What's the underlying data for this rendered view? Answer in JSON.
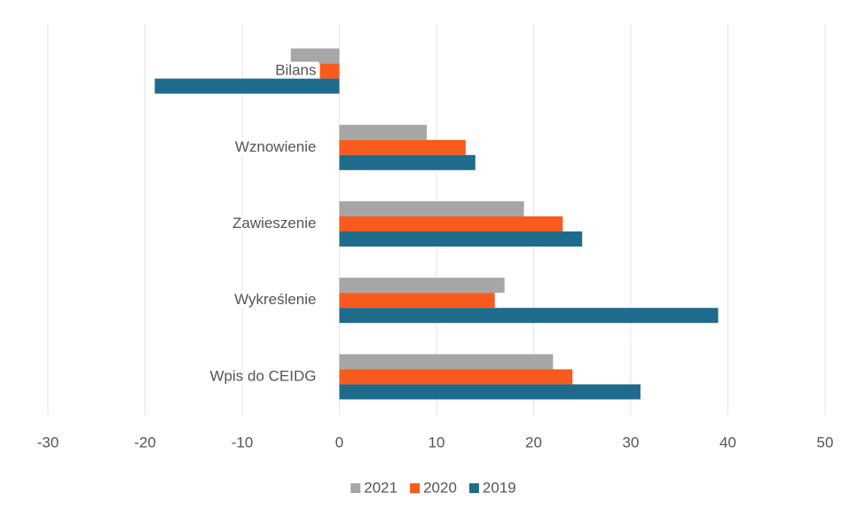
{
  "chart_data": {
    "type": "hbar",
    "categories": [
      "Bilans",
      "Wznowienie",
      "Zawieszenie",
      "Wykreślenie",
      "Wpis do CEIDG"
    ],
    "series": [
      {
        "name": "2021",
        "color": "#a6a6a6",
        "values": [
          -5,
          9,
          19,
          17,
          22
        ]
      },
      {
        "name": "2020",
        "color": "#f95a1e",
        "values": [
          -2,
          13,
          23,
          16,
          24
        ]
      },
      {
        "name": "2019",
        "color": "#1f6b8c",
        "values": [
          -19,
          14,
          25,
          39,
          31
        ]
      }
    ],
    "xlim": [
      -30,
      50
    ],
    "xticks": [
      -30,
      -20,
      -10,
      0,
      10,
      20,
      30,
      40,
      50
    ],
    "grid": true,
    "legend": "bottom"
  }
}
